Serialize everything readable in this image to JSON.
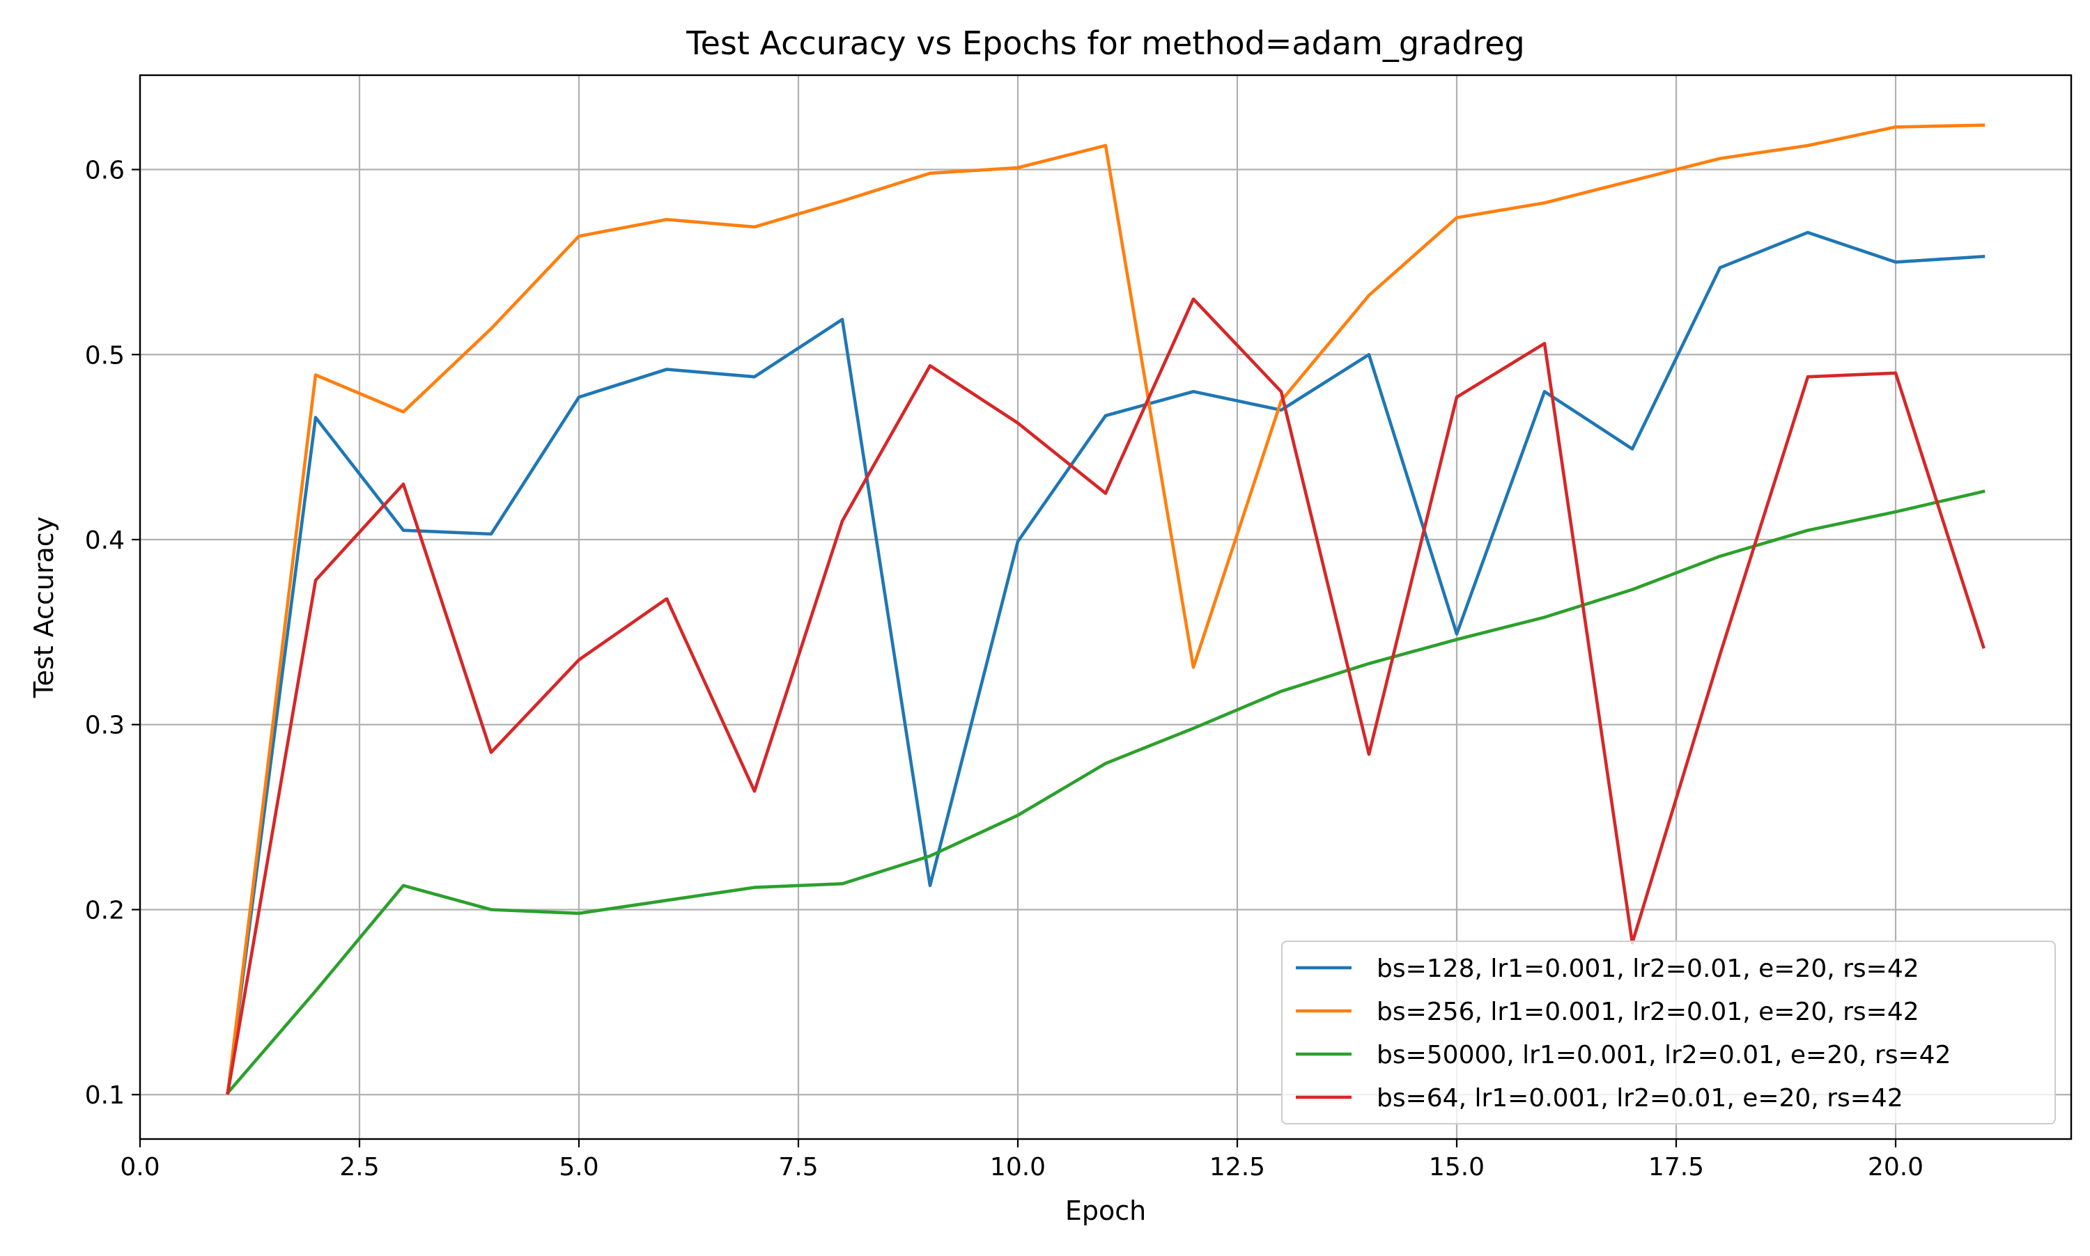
{
  "chart_data": {
    "type": "line",
    "title": "Test Accuracy vs Epochs for method=adam_gradreg",
    "xlabel": "Epoch",
    "ylabel": "Test Accuracy",
    "xlim": [
      0,
      22
    ],
    "ylim": [
      0.076,
      0.651
    ],
    "xticks": [
      0.0,
      2.5,
      5.0,
      7.5,
      10.0,
      12.5,
      15.0,
      17.5,
      20.0
    ],
    "xtick_labels": [
      "0.0",
      "2.5",
      "5.0",
      "7.5",
      "10.0",
      "12.5",
      "15.0",
      "17.5",
      "20.0"
    ],
    "yticks": [
      0.1,
      0.2,
      0.3,
      0.4,
      0.5,
      0.6
    ],
    "ytick_labels": [
      "0.1",
      "0.2",
      "0.3",
      "0.4",
      "0.5",
      "0.6"
    ],
    "grid": true,
    "legend_position": "lower-right",
    "x": [
      1,
      2,
      3,
      4,
      5,
      6,
      7,
      8,
      9,
      10,
      11,
      12,
      13,
      14,
      15,
      16,
      17,
      18,
      19,
      20,
      21
    ],
    "series": [
      {
        "name": "bs=128, lr1=0.001, lr2=0.01, e=20, rs=42",
        "color": "#1f77b4",
        "values": [
          0.101,
          0.466,
          0.405,
          0.403,
          0.477,
          0.492,
          0.488,
          0.519,
          0.213,
          0.399,
          0.467,
          0.48,
          0.47,
          0.5,
          0.349,
          0.48,
          0.449,
          0.547,
          0.566,
          0.55,
          0.553
        ]
      },
      {
        "name": "bs=256, lr1=0.001, lr2=0.01, e=20, rs=42",
        "color": "#ff7f0e",
        "values": [
          0.101,
          0.489,
          0.469,
          0.514,
          0.564,
          0.573,
          0.569,
          0.583,
          0.598,
          0.601,
          0.613,
          0.331,
          0.475,
          0.532,
          0.574,
          0.582,
          0.594,
          0.606,
          0.613,
          0.623,
          0.624
        ]
      },
      {
        "name": "bs=50000, lr1=0.001, lr2=0.01, e=20, rs=42",
        "color": "#2ca02c",
        "values": [
          0.101,
          0.156,
          0.213,
          0.2,
          0.198,
          0.205,
          0.212,
          0.214,
          0.229,
          0.251,
          0.279,
          0.298,
          0.318,
          0.333,
          0.346,
          0.358,
          0.373,
          0.391,
          0.405,
          0.415,
          0.426
        ]
      },
      {
        "name": "bs=64, lr1=0.001, lr2=0.01, e=20, rs=42",
        "color": "#d62728",
        "values": [
          0.101,
          0.378,
          0.43,
          0.285,
          0.335,
          0.368,
          0.264,
          0.41,
          0.494,
          0.463,
          0.425,
          0.53,
          0.48,
          0.284,
          0.477,
          0.506,
          0.182,
          0.338,
          0.488,
          0.49,
          0.342
        ]
      }
    ]
  }
}
